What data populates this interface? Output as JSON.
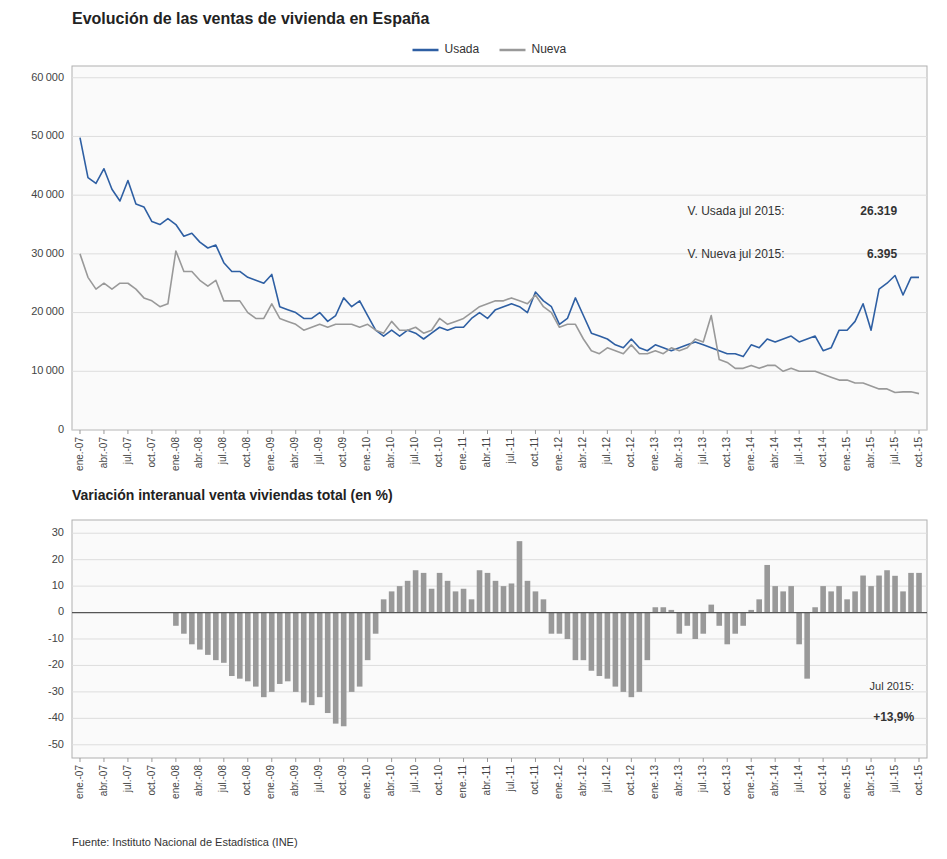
{
  "chart_data": [
    {
      "type": "line",
      "title": "Evolución de las ventas de vivienda en España",
      "categories": [
        "ene.-07",
        null,
        null,
        "abr.-07",
        null,
        null,
        "jul.-07",
        null,
        null,
        "oct.-07",
        null,
        null,
        "ene.-08",
        null,
        null,
        "abr.-08",
        null,
        null,
        "jul.-08",
        null,
        null,
        "oct.-08",
        null,
        null,
        "ene.-09",
        null,
        null,
        "abr.-09",
        null,
        null,
        "jul.-09",
        null,
        null,
        "oct.-09",
        null,
        null,
        "ene.-10",
        null,
        null,
        "abr.-10",
        null,
        null,
        "jul.-10",
        null,
        null,
        "oct.-10",
        null,
        null,
        "ene.-11",
        null,
        null,
        "abr.-11",
        null,
        null,
        "jul.-11",
        null,
        null,
        "oct.-11",
        null,
        null,
        "ene.-12",
        null,
        null,
        "abr.-12",
        null,
        null,
        "jul.-12",
        null,
        null,
        "oct.-12",
        null,
        null,
        "ene.-13",
        null,
        null,
        "abr.-13",
        null,
        null,
        "jul.-13",
        null,
        null,
        "oct.-13",
        null,
        null,
        "ene.-14",
        null,
        null,
        "abr.-14",
        null,
        null,
        "jul.-14",
        null,
        null,
        "oct.-14",
        null,
        null,
        "ene.-15",
        null,
        null,
        "abr.-15",
        null,
        null,
        "jul.-15",
        null,
        null,
        "oct.-15"
      ],
      "series": [
        {
          "name": "Usada",
          "color": "#2E5FA3",
          "values": [
            49800,
            43000,
            42000,
            44500,
            41000,
            39000,
            42500,
            38500,
            38000,
            35500,
            35000,
            36000,
            35000,
            33000,
            33500,
            32000,
            31000,
            31500,
            28500,
            27000,
            27000,
            26000,
            25500,
            25000,
            26500,
            21000,
            20500,
            20000,
            19000,
            19000,
            20000,
            18500,
            19500,
            22500,
            21000,
            22000,
            19500,
            17000,
            16000,
            17000,
            16000,
            17000,
            16500,
            15500,
            16500,
            17500,
            17000,
            17500,
            17500,
            19000,
            20000,
            19000,
            20500,
            21000,
            21500,
            21000,
            20000,
            23500,
            22000,
            21000,
            18000,
            19000,
            22500,
            19500,
            16500,
            16000,
            15500,
            14500,
            14000,
            15500,
            14000,
            13500,
            14500,
            14000,
            13500,
            14000,
            14500,
            15000,
            14500,
            14000,
            13500,
            13000,
            13000,
            12500,
            14500,
            14000,
            15500,
            15000,
            15500,
            16000,
            15000,
            15500,
            16000,
            13500,
            14000,
            17000,
            17000,
            18500,
            21500,
            17000,
            24000,
            25000,
            26319,
            23000,
            26000,
            26000
          ]
        },
        {
          "name": "Nueva",
          "color": "#999999",
          "values": [
            30000,
            26000,
            24000,
            25000,
            24000,
            25000,
            25000,
            24000,
            22500,
            22000,
            21000,
            21500,
            30500,
            27000,
            27000,
            25500,
            24500,
            25500,
            22000,
            22000,
            22000,
            20000,
            19000,
            19000,
            21500,
            19000,
            18500,
            18000,
            17000,
            17500,
            18000,
            17500,
            18000,
            18000,
            18000,
            17500,
            18000,
            17000,
            16500,
            18500,
            17000,
            17000,
            17500,
            16500,
            17000,
            19000,
            18000,
            18500,
            19000,
            20000,
            21000,
            21500,
            22000,
            22000,
            22500,
            22000,
            21500,
            23000,
            21000,
            20000,
            17500,
            18000,
            18000,
            15500,
            13500,
            13000,
            14000,
            13500,
            13000,
            14500,
            13000,
            13000,
            13500,
            13000,
            14000,
            13500,
            14000,
            15500,
            15000,
            19500,
            12000,
            11500,
            10500,
            10500,
            11000,
            10500,
            11000,
            11000,
            10000,
            10500,
            10000,
            10000,
            10000,
            9500,
            9000,
            8500,
            8500,
            8000,
            8000,
            7500,
            7000,
            7000,
            6395,
            6500,
            6500,
            6200
          ]
        }
      ],
      "ylim": [
        0,
        62000
      ],
      "yticks": [
        0,
        {
          "value": 10000,
          "label": "10 000"
        },
        {
          "value": 20000,
          "label": "20 000"
        },
        {
          "value": 30000,
          "label": "30 000"
        },
        {
          "value": 40000,
          "label": "40 000"
        },
        {
          "value": 50000,
          "label": "50 000"
        },
        {
          "value": 60000,
          "label": "60 000"
        }
      ],
      "grid": true,
      "legend": "top",
      "annotations": [
        "V. Usada jul 2015: ",
        "26.319",
        "V. Nueva jul 2015: ",
        "6.395"
      ]
    },
    {
      "type": "bar",
      "title": "Variación interanual venta viviendas total (en %)",
      "categories": [
        "ene.-07",
        null,
        null,
        "abr.-07",
        null,
        null,
        "jul.-07",
        null,
        null,
        "oct.-07",
        null,
        null,
        "ene.-08",
        null,
        null,
        "abr.-08",
        null,
        null,
        "jul.-08",
        null,
        null,
        "oct.-08",
        null,
        null,
        "ene.-09",
        null,
        null,
        "abr.-09",
        null,
        null,
        "jul.-09",
        null,
        null,
        "oct.-09",
        null,
        null,
        "ene.-10",
        null,
        null,
        "abr.-10",
        null,
        null,
        "jul.-10",
        null,
        null,
        "oct.-10",
        null,
        null,
        "ene.-11",
        null,
        null,
        "abr.-11",
        null,
        null,
        "jul.-11",
        null,
        null,
        "oct.-11",
        null,
        null,
        "ene.-12",
        null,
        null,
        "abr.-12",
        null,
        null,
        "jul.-12",
        null,
        null,
        "oct.-12",
        null,
        null,
        "ene.-13",
        null,
        null,
        "abr.-13",
        null,
        null,
        "jul.-13",
        null,
        null,
        "oct.-13",
        null,
        null,
        "ene.-14",
        null,
        null,
        "abr.-14",
        null,
        null,
        "jul.-14",
        null,
        null,
        "oct.-14",
        null,
        null,
        "ene.-15",
        null,
        null,
        "abr.-15",
        null,
        null,
        "jul.-15",
        null,
        null,
        "oct.-15"
      ],
      "values": [
        null,
        null,
        null,
        null,
        null,
        null,
        null,
        null,
        null,
        null,
        null,
        null,
        -5.0,
        -8.0,
        -12.0,
        -14.0,
        -16.0,
        -18.0,
        -19.0,
        -24.0,
        -25.0,
        -26.0,
        -28.0,
        -32.0,
        -30.0,
        -27.0,
        -26.0,
        -30.0,
        -34.0,
        -35.0,
        -32.0,
        -38.0,
        -42.0,
        -43.0,
        -30.0,
        -28.0,
        -18.0,
        -8.0,
        5.0,
        8.0,
        10.0,
        12.0,
        16.0,
        15.0,
        9.0,
        15.0,
        12.0,
        8.0,
        9.0,
        5.0,
        16.0,
        15.0,
        12.0,
        10.0,
        11.0,
        27.0,
        12.0,
        8.0,
        5.0,
        -8.0,
        -8.0,
        -10.0,
        -18.0,
        -18.0,
        -22.0,
        -24.0,
        -25.0,
        -28.0,
        -30.0,
        -32.0,
        -30.0,
        -18.0,
        2.0,
        2.0,
        1.0,
        -8.0,
        -5.0,
        -10.0,
        -8.0,
        3.0,
        -5.0,
        -12.0,
        -8.0,
        -5.0,
        1.0,
        5.0,
        18.0,
        10.0,
        8.0,
        10.0,
        -12.0,
        -25.0,
        2.0,
        10.0,
        8.0,
        10.0,
        5.0,
        8.0,
        14.0,
        10.0,
        14.0,
        16.0,
        13.9,
        8.0,
        15.0,
        15.0
      ],
      "color": "#999999",
      "ylim": [
        -55,
        35
      ],
      "yticks": [
        -50,
        -40,
        -30,
        -20,
        -10,
        0,
        10,
        20,
        30
      ],
      "grid": true,
      "annotations": [
        "Jul 2015:",
        "+13,9%"
      ],
      "source": "Fuente: Instituto Nacional de Estadística (INE)"
    }
  ]
}
